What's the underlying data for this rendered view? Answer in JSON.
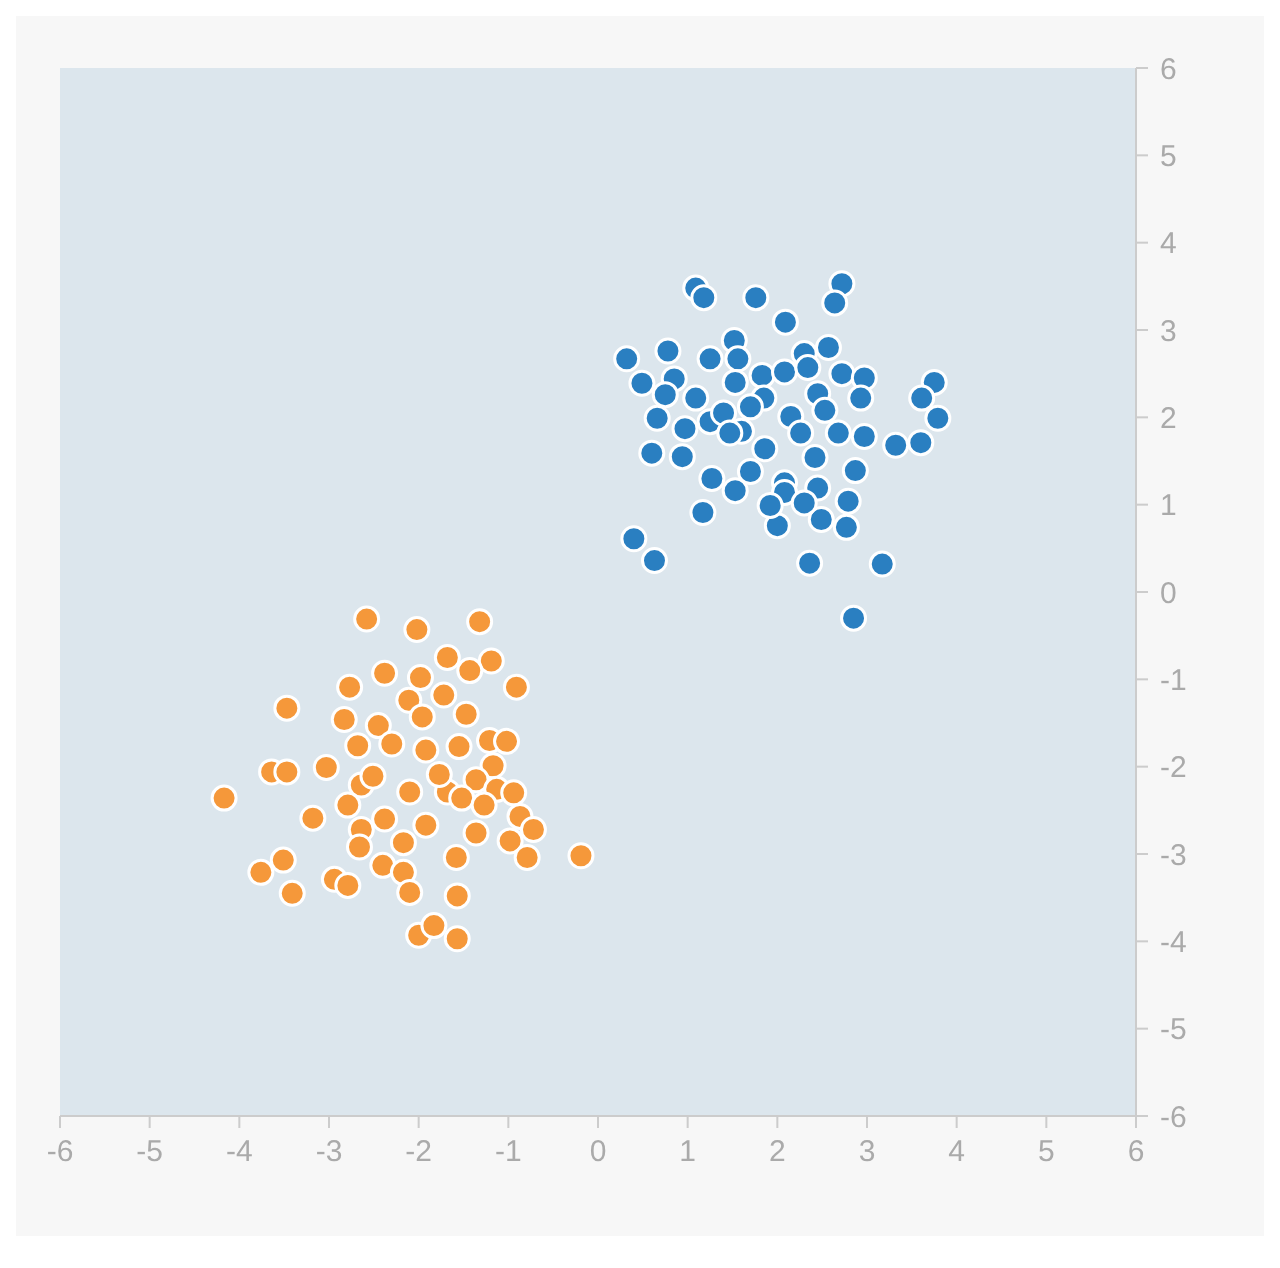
{
  "chart_data": {
    "type": "scatter",
    "xlim": [
      -6,
      6
    ],
    "ylim": [
      -6,
      6
    ],
    "xticks": [
      -6,
      -5,
      -4,
      -3,
      -2,
      -1,
      0,
      1,
      2,
      3,
      4,
      5,
      6
    ],
    "yticks": [
      -6,
      -5,
      -4,
      -3,
      -2,
      -1,
      0,
      1,
      2,
      3,
      4,
      5,
      6
    ],
    "grid": false,
    "marker": "circle",
    "series": [
      {
        "color": "#2a7fc1",
        "x": [
          1.09,
          1.18,
          1.76,
          2.72,
          2.64,
          2.09,
          0.32,
          0.78,
          1.52,
          1.25,
          1.56,
          0.49,
          0.85,
          0.75,
          1.09,
          0.66,
          0.97,
          1.25,
          1.53,
          1.83,
          2.08,
          2.3,
          2.57,
          2.34,
          2.72,
          2.97,
          3.75,
          3.61,
          3.79,
          2.93,
          2.45,
          1.85,
          1.7,
          2.53,
          2.15,
          1.6,
          1.86,
          2.26,
          2.68,
          2.97,
          3.32,
          3.6,
          0.6,
          0.94,
          1.27,
          1.7,
          2.08,
          2.42,
          2.87,
          1.53,
          2.08,
          2.45,
          2.79,
          1.17,
          2.0,
          2.49,
          2.77,
          0.4,
          0.63,
          2.36,
          3.17,
          2.85,
          1.92,
          2.3,
          1.4,
          1.47
        ],
        "values": [
          3.48,
          3.37,
          3.37,
          3.53,
          3.31,
          3.09,
          2.67,
          2.76,
          2.88,
          2.67,
          2.67,
          2.39,
          2.44,
          2.26,
          2.22,
          1.99,
          1.87,
          1.95,
          2.4,
          2.48,
          2.52,
          2.73,
          2.8,
          2.57,
          2.5,
          2.45,
          2.4,
          2.22,
          1.99,
          2.22,
          2.27,
          2.22,
          2.12,
          2.08,
          2.01,
          1.84,
          1.64,
          1.82,
          1.82,
          1.78,
          1.68,
          1.71,
          1.59,
          1.55,
          1.3,
          1.38,
          1.25,
          1.54,
          1.39,
          1.16,
          1.14,
          1.19,
          1.04,
          0.91,
          0.76,
          0.83,
          0.74,
          0.61,
          0.36,
          0.33,
          0.32,
          -0.3,
          0.99,
          1.02,
          2.05,
          1.82
        ]
      },
      {
        "color": "#f5983a",
        "x": [
          -2.58,
          -2.02,
          -1.32,
          -1.68,
          -1.19,
          -1.43,
          -2.38,
          -1.98,
          -0.91,
          -2.77,
          -3.47,
          -2.83,
          -2.11,
          -1.72,
          -1.47,
          -1.96,
          -2.45,
          -2.68,
          -2.3,
          -1.92,
          -1.55,
          -1.21,
          -1.02,
          -1.17,
          -3.64,
          -3.47,
          -3.03,
          -2.64,
          -2.1,
          -1.68,
          -1.36,
          -1.13,
          -0.94,
          -4.17,
          -3.18,
          -2.38,
          -1.92,
          -1.52,
          -1.27,
          -0.87,
          -0.72,
          -2.64,
          -2.17,
          -1.36,
          -0.98,
          -2.66,
          -3.51,
          -1.58,
          -0.79,
          -0.19,
          -3.76,
          -2.94,
          -2.4,
          -2.17,
          -3.41,
          -2.79,
          -2.1,
          -1.57,
          -2.0,
          -1.83,
          -1.57,
          -2.51,
          -1.77,
          -2.79
        ],
        "values": [
          -0.31,
          -0.43,
          -0.34,
          -0.75,
          -0.79,
          -0.9,
          -0.93,
          -0.98,
          -1.09,
          -1.09,
          -1.33,
          -1.46,
          -1.24,
          -1.18,
          -1.4,
          -1.43,
          -1.53,
          -1.76,
          -1.74,
          -1.81,
          -1.77,
          -1.7,
          -1.71,
          -1.99,
          -2.06,
          -2.06,
          -2.01,
          -2.21,
          -2.29,
          -2.29,
          -2.15,
          -2.26,
          -2.3,
          -2.36,
          -2.59,
          -2.6,
          -2.67,
          -2.36,
          -2.44,
          -2.57,
          -2.72,
          -2.72,
          -2.87,
          -2.76,
          -2.85,
          -2.92,
          -3.07,
          -3.04,
          -3.04,
          -3.02,
          -3.21,
          -3.29,
          -3.13,
          -3.21,
          -3.45,
          -3.36,
          -3.44,
          -3.48,
          -3.93,
          -3.82,
          -3.97,
          -2.11,
          -2.09,
          -2.44
        ]
      }
    ]
  }
}
